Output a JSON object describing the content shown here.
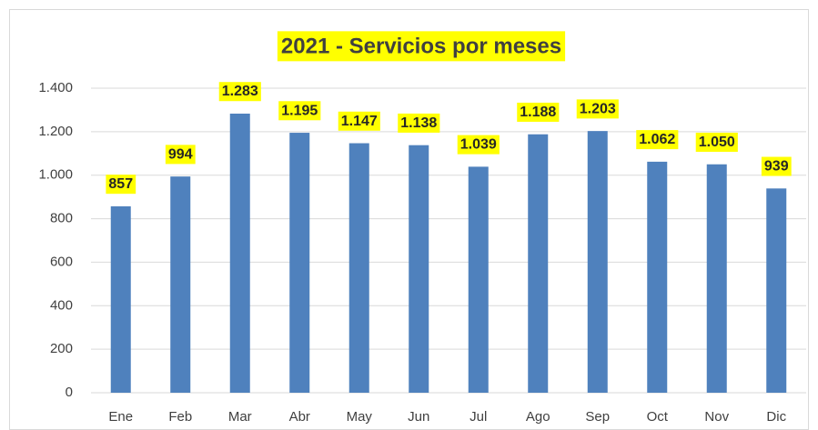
{
  "chart_data": {
    "type": "bar",
    "title": "2021 - Servicios por meses",
    "categories": [
      "Ene",
      "Feb",
      "Mar",
      "Abr",
      "May",
      "Jun",
      "Jul",
      "Ago",
      "Sep",
      "Oct",
      "Nov",
      "Dic"
    ],
    "values": [
      857,
      994,
      1283,
      1195,
      1147,
      1138,
      1039,
      1188,
      1203,
      1062,
      1050,
      939
    ],
    "value_labels": [
      "857",
      "994",
      "1.283",
      "1.195",
      "1.147",
      "1.138",
      "1.039",
      "1.188",
      "1.203",
      "1.062",
      "1.050",
      "939"
    ],
    "color": "#4f81bd",
    "ylim": [
      0,
      1400
    ],
    "yticks": [
      0,
      200,
      400,
      600,
      800,
      {
        "value": 1000,
        "label": "1.000"
      },
      {
        "value": 1200,
        "label": "1.200"
      },
      {
        "value": 1400,
        "label": "1.400"
      }
    ],
    "grid": true
  }
}
